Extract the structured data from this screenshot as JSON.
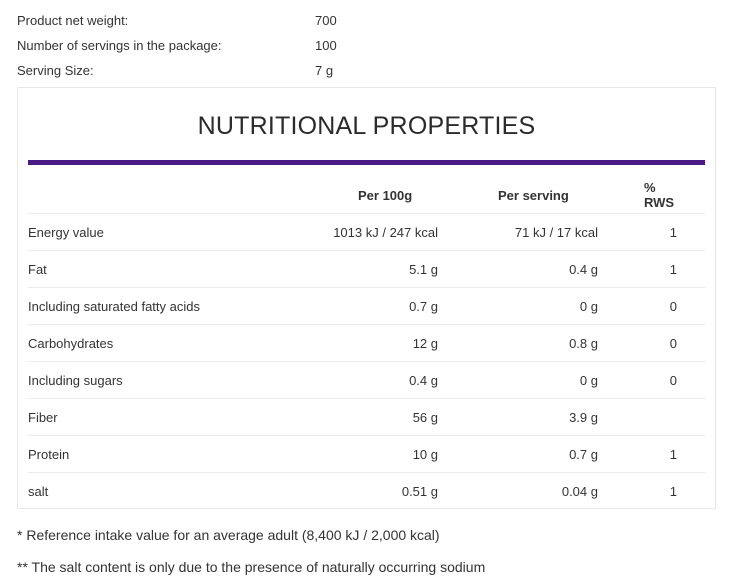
{
  "product_meta": [
    {
      "label": "Product net weight:",
      "value": "700"
    },
    {
      "label": "Number of servings in the package:",
      "value": "100"
    },
    {
      "label": "Serving Size:",
      "value": "7 g"
    }
  ],
  "nutrition": {
    "title": "NUTRITIONAL PROPERTIES",
    "headers": {
      "name": "",
      "per_100g": "Per 100g",
      "per_serving": "Per serving",
      "rws": "% RWS"
    },
    "rows": [
      {
        "name": "Energy value",
        "per_100g": "1013 kJ / 247 kcal",
        "per_serving": "71 kJ / 17 kcal",
        "rws": "1"
      },
      {
        "name": "Fat",
        "per_100g": "5.1 g",
        "per_serving": "0.4 g",
        "rws": "1"
      },
      {
        "name": "Including saturated fatty acids",
        "per_100g": "0.7 g",
        "per_serving": "0 g",
        "rws": "0"
      },
      {
        "name": "Carbohydrates",
        "per_100g": "12 g",
        "per_serving": "0.8 g",
        "rws": "0"
      },
      {
        "name": "Including sugars",
        "per_100g": "0.4 g",
        "per_serving": "0 g",
        "rws": "0"
      },
      {
        "name": "Fiber",
        "per_100g": "56 g",
        "per_serving": "3.9 g",
        "rws": ""
      },
      {
        "name": "Protein",
        "per_100g": "10 g",
        "per_serving": "0.7 g",
        "rws": "1"
      },
      {
        "name": "salt",
        "per_100g": "0.51 g",
        "per_serving": "0.04 g",
        "rws": "1"
      }
    ]
  },
  "footnotes": [
    "* Reference intake value for an average adult (8,400 kJ / 2,000 kcal)",
    "** The salt content is only due to the presence of naturally occurring sodium"
  ],
  "colors": {
    "accent_rule": "#4b1a85"
  }
}
